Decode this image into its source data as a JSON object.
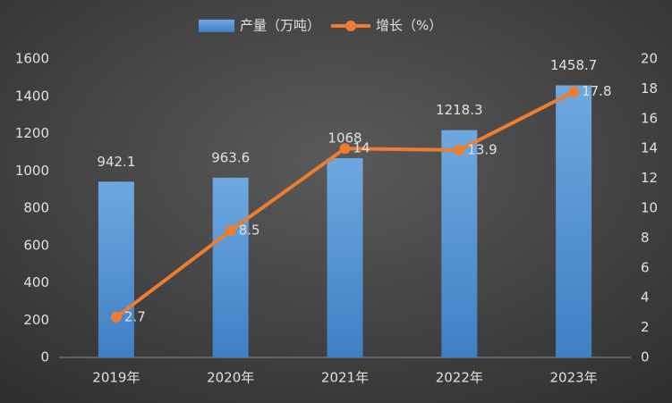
{
  "chart_data": {
    "type": "bar",
    "categories": [
      "2019年",
      "2020年",
      "2021年",
      "2022年",
      "2023年"
    ],
    "series": [
      {
        "name": "产量（万吨）",
        "color": "#5b9bd5",
        "values": [
          942.1,
          963.6,
          1068,
          1218.3,
          1458.7
        ]
      },
      {
        "name": "增长（%）",
        "color": "#ed7d31",
        "type": "line",
        "axis": "y2",
        "values": [
          2.7,
          8.5,
          14,
          13.9,
          17.8
        ]
      }
    ],
    "ylim": [
      0,
      1600
    ],
    "yticks": [
      0,
      200,
      400,
      600,
      800,
      1000,
      1200,
      1400,
      1600
    ],
    "y2lim": [
      0,
      20
    ],
    "y2ticks": [
      0,
      2,
      4,
      6,
      8,
      10,
      12,
      14,
      16,
      18,
      20
    ],
    "legend": "top"
  }
}
